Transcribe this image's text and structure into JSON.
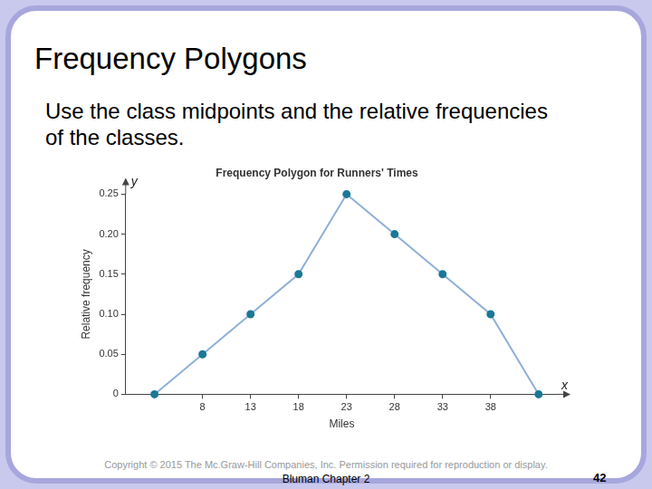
{
  "slide": {
    "title": "Frequency Polygons",
    "body": "Use the class midpoints and the relative frequencies of the classes.",
    "footer": "Copyright © 2015 The Mc.Graw-Hill Companies, Inc. Permission required for reproduction or display.",
    "subfooter": "Bluman Chapter 2",
    "page_number": 42
  },
  "chart_data": {
    "type": "line",
    "title": "Frequency Polygon for Runners' Times",
    "x_label": "Miles",
    "y_label": "Relative frequency",
    "annotations": [
      "y",
      "x"
    ],
    "x": [
      3,
      8,
      13,
      18,
      23,
      28,
      33,
      38,
      43
    ],
    "values": [
      0,
      0.05,
      0.1,
      0.15,
      0.25,
      0.2,
      0.15,
      0.1,
      0
    ],
    "color": "#8eb0d8",
    "marker": "circle",
    "marker_color": "#1b7896",
    "xlim": [
      0,
      45
    ],
    "xticks": [
      8,
      13,
      18,
      23,
      28,
      33,
      38
    ],
    "ylim": [
      0,
      0.25
    ],
    "yticks": [
      0,
      0.05,
      {
        "value": 0.1,
        "label": "0.10"
      },
      0.15,
      {
        "value": 0.2,
        "label": "0.20"
      },
      0.25
    ],
    "grid": false
  }
}
